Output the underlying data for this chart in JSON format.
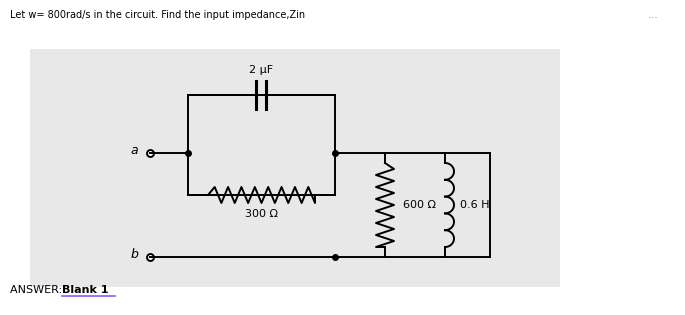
{
  "title": "Let w= 800rad/s in the circuit. Find the input impedance,Zin",
  "answer_label": "ANSWER: ",
  "answer_bold": "Blank 1",
  "dots_top_right": "...",
  "bg_color": "#e8e8e8",
  "outer_bg": "#ffffff",
  "circuit": {
    "cap_label": "2 μF",
    "res1_label": "300 Ω",
    "res2_label": "600 Ω",
    "ind_label": "0.6 H",
    "node_a": "a",
    "node_b": "b"
  }
}
